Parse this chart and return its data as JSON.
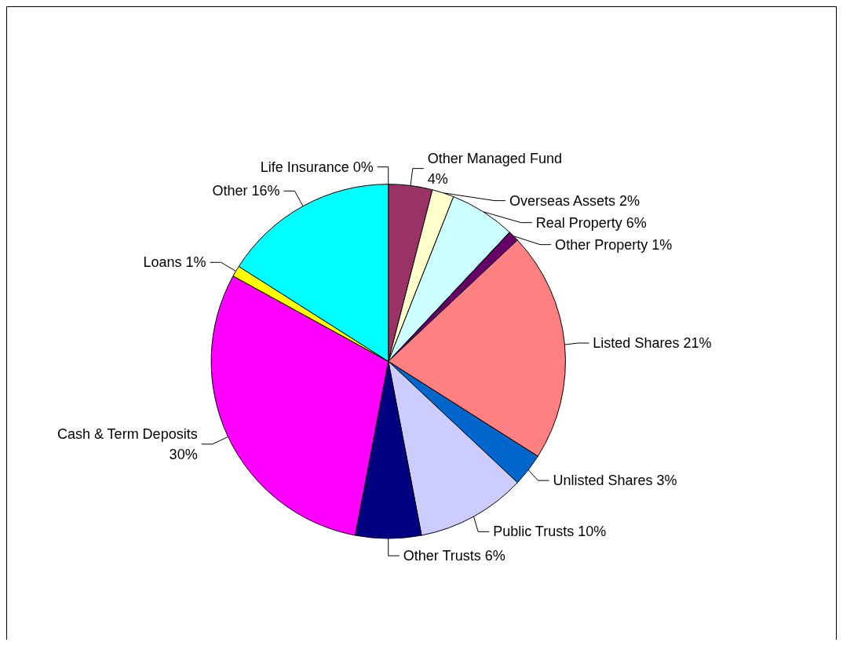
{
  "chart_data": {
    "type": "pie",
    "categories": [
      "Life Insurance",
      "Other Managed Fund",
      "Overseas Assets",
      "Real Property",
      "Other Property",
      "Listed Shares",
      "Unlisted Shares",
      "Public Trusts",
      "Other Trusts",
      "Cash & Term Deposits",
      "Loans",
      "Other"
    ],
    "values": [
      0,
      4,
      2,
      6,
      1,
      21,
      3,
      10,
      6,
      30,
      1,
      16
    ],
    "value_labels": [
      "0%",
      "4%",
      "2%",
      "6%",
      "1%",
      "21%",
      "3%",
      "10%",
      "6%",
      "30%",
      "1%",
      "16%"
    ],
    "colors": [
      "#333333",
      "#993366",
      "#ffffcc",
      "#ccffff",
      "#660066",
      "#ff8080",
      "#0066cc",
      "#ccccff",
      "#000080",
      "#ff00ff",
      "#ffff00",
      "#00ffff"
    ]
  }
}
